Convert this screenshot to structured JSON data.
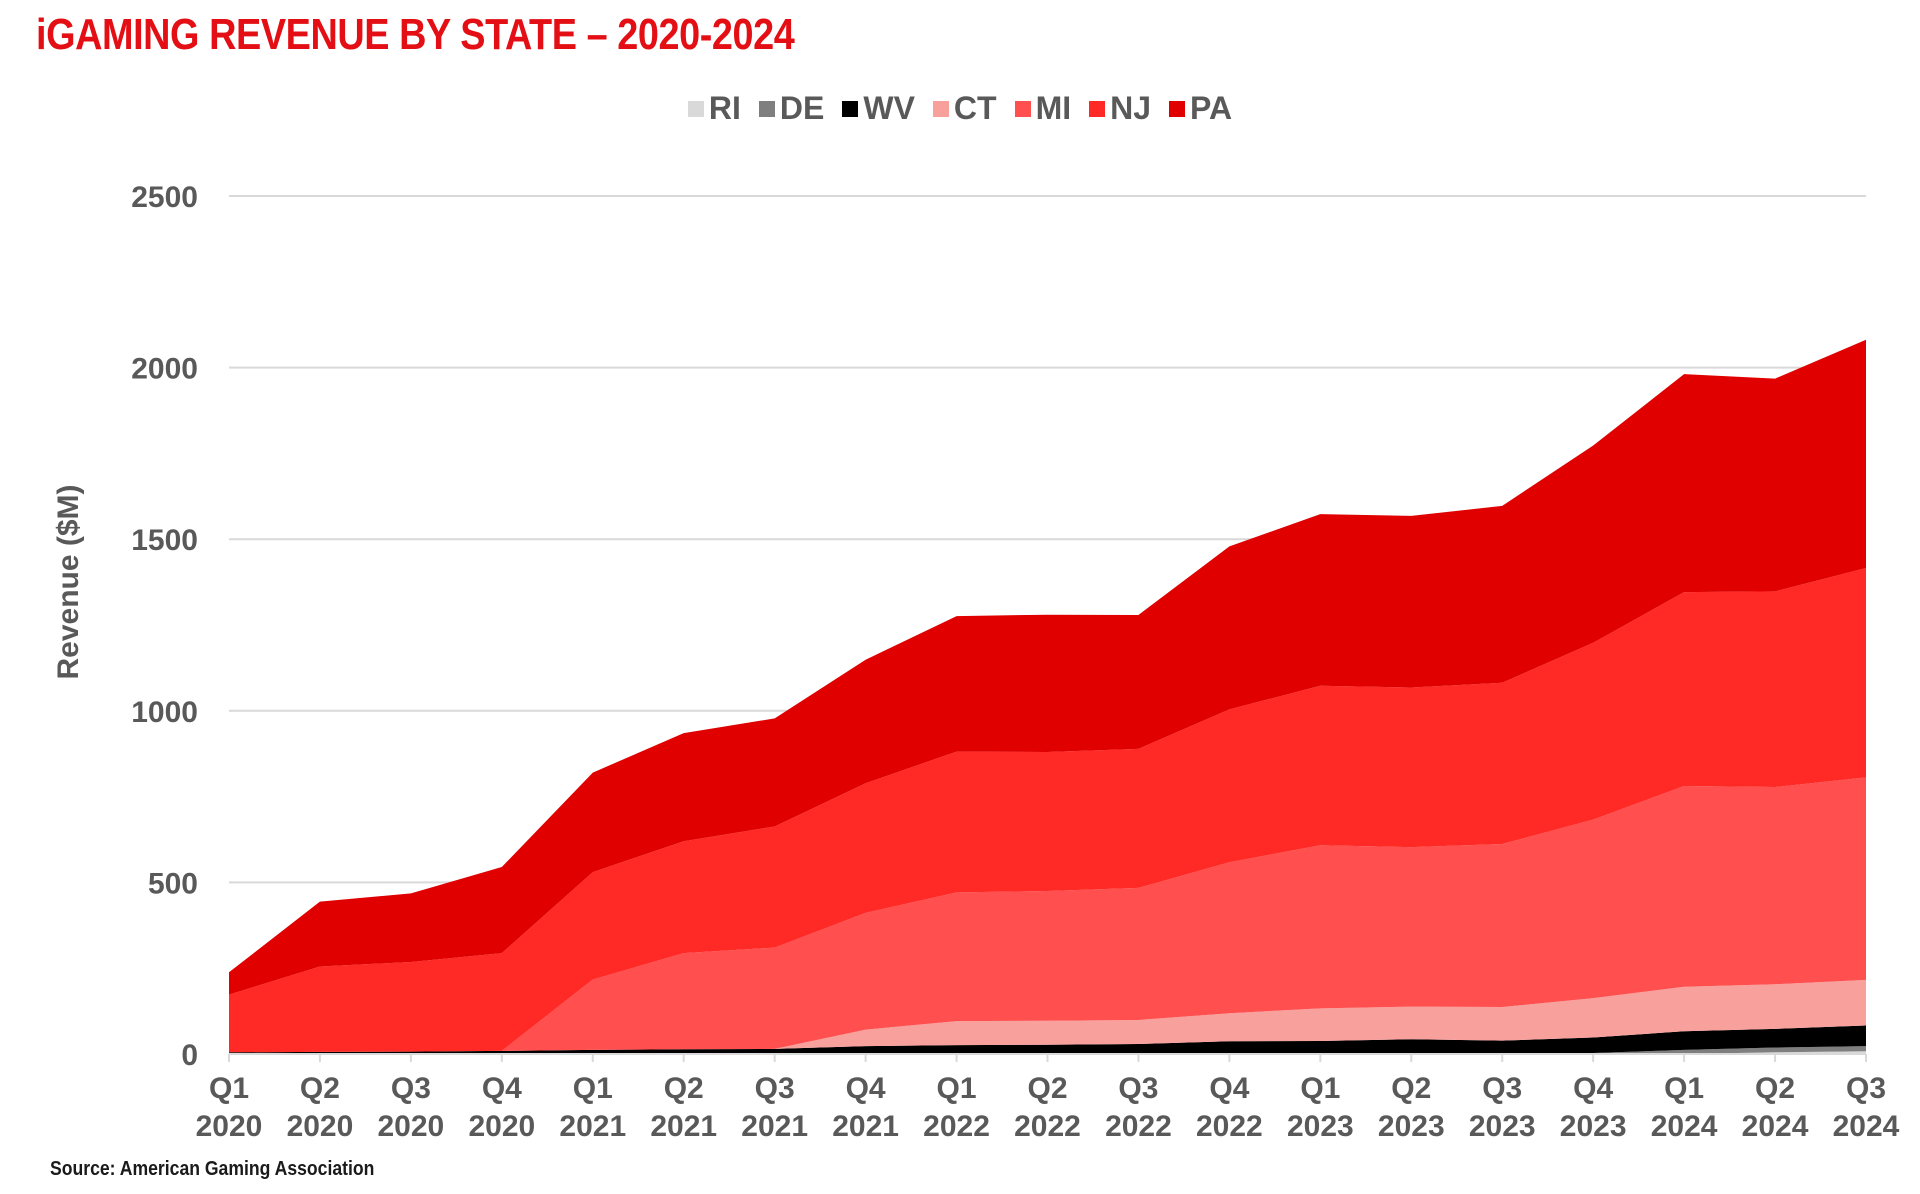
{
  "chart_data": {
    "type": "area",
    "stacked": true,
    "title": "iGAMING REVENUE BY STATE – 2020-2024",
    "ylabel": "Revenue ($M)",
    "xlabel": "",
    "ylim": [
      0,
      2500
    ],
    "yticks": [
      0,
      500,
      1000,
      1500,
      2000,
      2500
    ],
    "grid": true,
    "legend_position": "top-center",
    "source": "Source: American Gaming Association",
    "categories": [
      {
        "quarter": "Q1",
        "year": "2020"
      },
      {
        "quarter": "Q2",
        "year": "2020"
      },
      {
        "quarter": "Q3",
        "year": "2020"
      },
      {
        "quarter": "Q4",
        "year": "2020"
      },
      {
        "quarter": "Q1",
        "year": "2021"
      },
      {
        "quarter": "Q2",
        "year": "2021"
      },
      {
        "quarter": "Q3",
        "year": "2021"
      },
      {
        "quarter": "Q4",
        "year": "2021"
      },
      {
        "quarter": "Q1",
        "year": "2022"
      },
      {
        "quarter": "Q2",
        "year": "2022"
      },
      {
        "quarter": "Q3",
        "year": "2022"
      },
      {
        "quarter": "Q4",
        "year": "2022"
      },
      {
        "quarter": "Q1",
        "year": "2023"
      },
      {
        "quarter": "Q2",
        "year": "2023"
      },
      {
        "quarter": "Q3",
        "year": "2023"
      },
      {
        "quarter": "Q4",
        "year": "2023"
      },
      {
        "quarter": "Q1",
        "year": "2024"
      },
      {
        "quarter": "Q2",
        "year": "2024"
      },
      {
        "quarter": "Q3",
        "year": "2024"
      }
    ],
    "series": [
      {
        "name": "RI",
        "color": "#d9d9d9",
        "values": [
          0,
          0,
          0,
          0,
          0,
          0,
          0,
          0,
          0,
          0,
          0,
          0,
          0,
          0,
          0,
          0,
          0,
          5,
          8
        ]
      },
      {
        "name": "DE",
        "color": "#7f7f7f",
        "values": [
          2,
          2,
          2,
          2,
          3,
          3,
          3,
          3,
          3,
          3,
          3,
          3,
          3,
          3,
          3,
          3,
          12,
          14,
          15
        ]
      },
      {
        "name": "WV",
        "color": "#000000",
        "values": [
          3,
          4,
          5,
          7,
          9,
          11,
          12,
          20,
          23,
          24,
          26,
          34,
          35,
          40,
          36,
          45,
          54,
          54,
          60
        ]
      },
      {
        "name": "CT",
        "color": "#f7a09c",
        "values": [
          0,
          0,
          0,
          0,
          0,
          0,
          0,
          48,
          70,
          70,
          70,
          82,
          95,
          95,
          98,
          115,
          130,
          130,
          133
        ]
      },
      {
        "name": "MI",
        "color": "#ff4f4f",
        "values": [
          0,
          0,
          0,
          0,
          205,
          280,
          295,
          340,
          375,
          378,
          385,
          440,
          475,
          465,
          475,
          520,
          585,
          575,
          590
        ]
      },
      {
        "name": "NJ",
        "color": "#ff2a26",
        "values": [
          168,
          249,
          261,
          285,
          313,
          326,
          353,
          378,
          410,
          405,
          405,
          445,
          465,
          465,
          470,
          515,
          565,
          570,
          610
        ]
      },
      {
        "name": "PA",
        "color": "#e00000",
        "values": [
          65,
          189,
          200,
          251,
          290,
          315,
          315,
          360,
          395,
          400,
          390,
          475,
          500,
          500,
          515,
          575,
          635,
          620,
          665
        ]
      }
    ]
  }
}
